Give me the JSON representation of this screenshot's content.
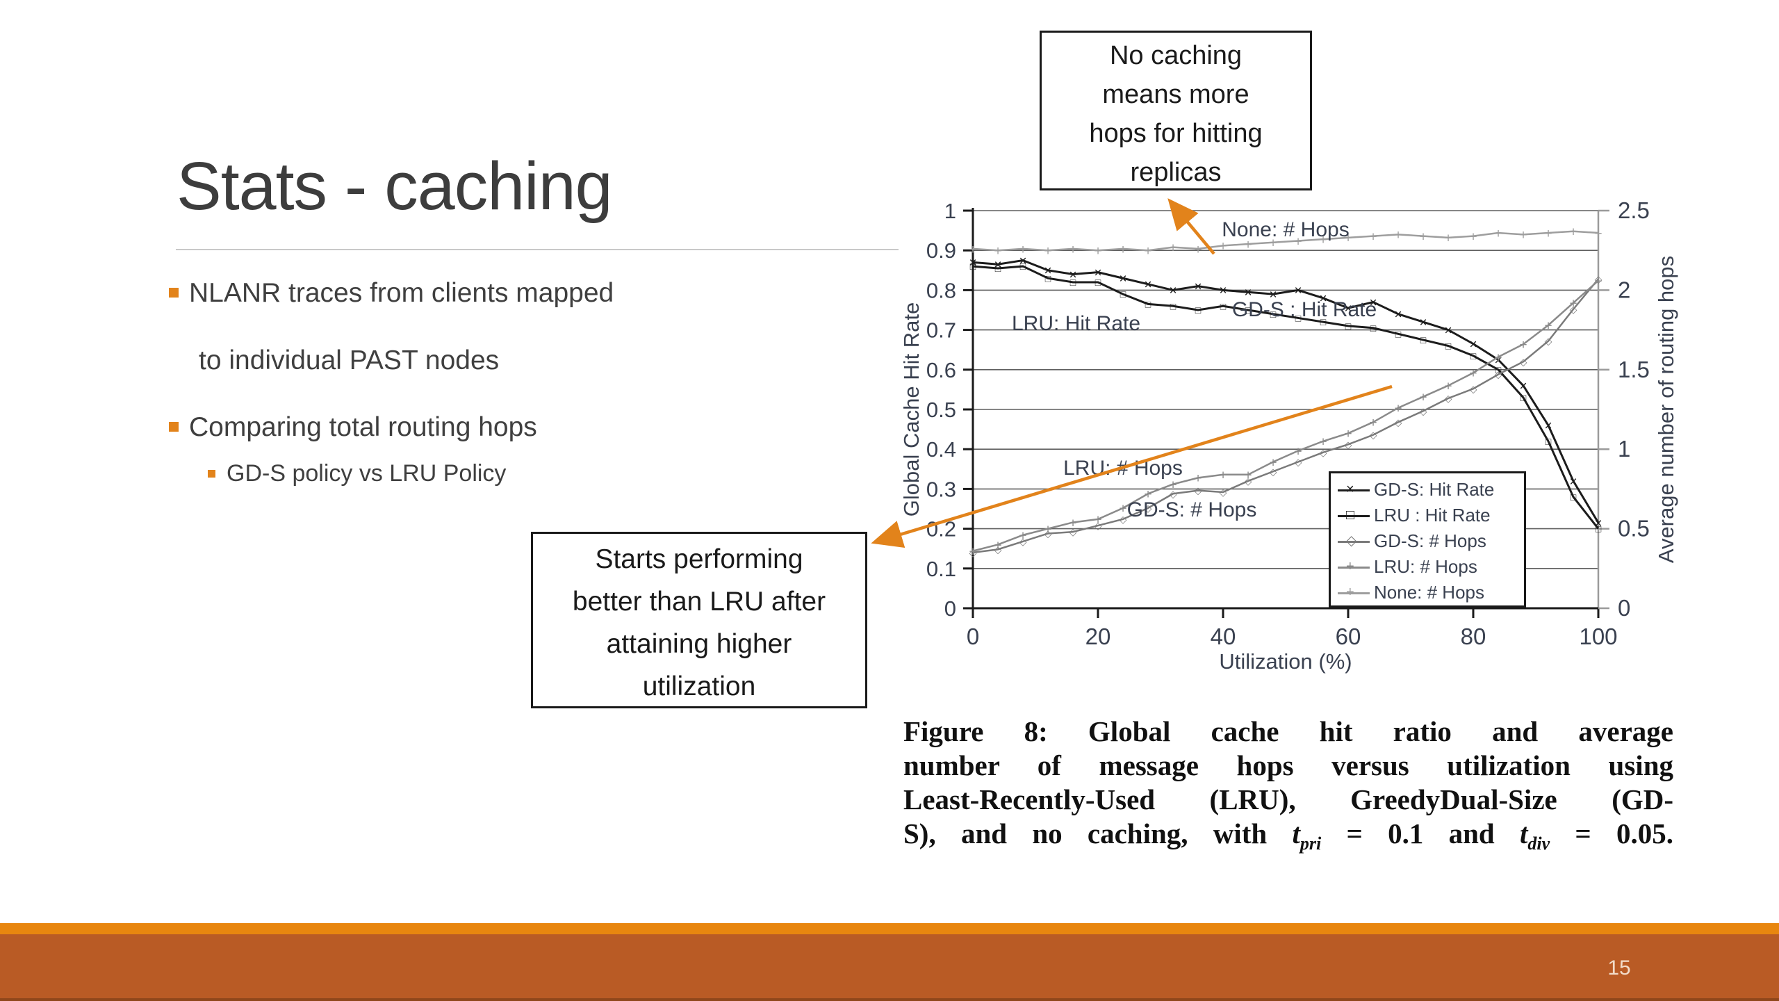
{
  "slide": {
    "title": "Stats - caching",
    "page_number": "15",
    "bullets": {
      "b1_line1": "NLANR traces from clients mapped",
      "b1_line2": "to individual PAST nodes",
      "b2": "Comparing total routing hops",
      "b2_sub": "GD-S policy vs LRU Policy"
    },
    "colors": {
      "accent_orange": "#e2831b",
      "footer_stripe_orange": "#e8860f",
      "footer_rust": "#b95b25"
    }
  },
  "callouts": {
    "no_caching": {
      "lines": [
        "No caching",
        "means more",
        "hops for hitting",
        "replicas"
      ]
    },
    "starts_performing": {
      "lines": [
        "Starts performing",
        "better than LRU after",
        "attaining higher",
        "utilization"
      ]
    }
  },
  "figure_caption": {
    "line1": "Figure 8:  Global cache hit ratio and average",
    "line2": "number of message hops versus utilization using",
    "line3": "Least-Recently-Used (LRU), GreedyDual-Size (GD-",
    "line4_parts": {
      "a": "S), and no caching, with ",
      "t1": "t",
      "sub1": "pri",
      "b": " = 0.1 and ",
      "t2": "t",
      "sub2": "div",
      "c": " = 0.05."
    }
  },
  "chart_data": {
    "type": "line",
    "title": "",
    "xlabel": "Utilization (%)",
    "ylabel_left": "Global Cache Hit Rate",
    "ylabel_right": "Average number of routing hops",
    "xlim": [
      0,
      100
    ],
    "ylim_left": [
      0,
      1
    ],
    "ylim_right": [
      0,
      2.5
    ],
    "grid": true,
    "legend_position": "inside-lower-right",
    "x_ticks": [
      0,
      20,
      40,
      60,
      80,
      100
    ],
    "left_ticks": [
      1,
      0.9,
      0.8,
      0.7,
      0.6,
      0.5,
      0.4,
      0.3,
      0.2,
      0.1,
      0
    ],
    "right_ticks": [
      2.5,
      2,
      1.5,
      1,
      0.5,
      0
    ],
    "x": [
      0,
      4,
      8,
      12,
      16,
      20,
      24,
      28,
      32,
      36,
      40,
      44,
      48,
      52,
      56,
      60,
      64,
      68,
      72,
      76,
      80,
      84,
      88,
      92,
      96,
      100
    ],
    "series": [
      {
        "name": "GD-S: Hit Rate",
        "axis": "left",
        "color": "#1c1c1c",
        "marker": "x",
        "values": [
          0.87,
          0.865,
          0.875,
          0.85,
          0.84,
          0.845,
          0.83,
          0.815,
          0.8,
          0.81,
          0.8,
          0.795,
          0.79,
          0.8,
          0.78,
          0.755,
          0.77,
          0.74,
          0.72,
          0.7,
          0.665,
          0.625,
          0.56,
          0.46,
          0.32,
          0.215
        ]
      },
      {
        "name": "LRU : Hit Rate",
        "axis": "left",
        "color": "#1c1c1c",
        "marker": "square",
        "values": [
          0.86,
          0.855,
          0.86,
          0.83,
          0.82,
          0.82,
          0.79,
          0.765,
          0.76,
          0.75,
          0.76,
          0.75,
          0.74,
          0.73,
          0.72,
          0.71,
          0.705,
          0.69,
          0.675,
          0.66,
          0.635,
          0.6,
          0.53,
          0.42,
          0.28,
          0.2
        ]
      },
      {
        "name": "GD-S: # Hops",
        "axis": "right",
        "color": "#7a7a7a",
        "marker": "diamond",
        "values": [
          0.35,
          0.37,
          0.42,
          0.47,
          0.48,
          0.52,
          0.56,
          0.63,
          0.72,
          0.74,
          0.73,
          0.8,
          0.86,
          0.92,
          0.98,
          1.03,
          1.09,
          1.17,
          1.24,
          1.32,
          1.38,
          1.47,
          1.55,
          1.68,
          1.88,
          2.07
        ]
      },
      {
        "name": "LRU: # Hops",
        "axis": "right",
        "color": "#8a8a8a",
        "marker": "plus",
        "values": [
          0.36,
          0.4,
          0.46,
          0.5,
          0.54,
          0.56,
          0.63,
          0.72,
          0.78,
          0.82,
          0.84,
          0.84,
          0.92,
          0.99,
          1.05,
          1.1,
          1.17,
          1.26,
          1.33,
          1.4,
          1.48,
          1.58,
          1.66,
          1.78,
          1.92,
          2.06
        ]
      },
      {
        "name": "None: # Hops",
        "axis": "right",
        "color": "#9e9e9e",
        "marker": "plus",
        "values": [
          2.26,
          2.25,
          2.26,
          2.25,
          2.26,
          2.25,
          2.26,
          2.25,
          2.27,
          2.26,
          2.28,
          2.29,
          2.3,
          2.31,
          2.32,
          2.33,
          2.34,
          2.35,
          2.34,
          2.33,
          2.34,
          2.36,
          2.35,
          2.36,
          2.37,
          2.36
        ]
      }
    ],
    "annotations": [
      {
        "text": "None: # Hops",
        "x": 50,
        "y": 0.953
      },
      {
        "text": "LRU: Hit Rate",
        "x": 16.5,
        "y": 0.717
      },
      {
        "text": "GD-S : Hit Rate",
        "x": 53,
        "y": 0.752
      },
      {
        "text": "LRU: # Hops",
        "x": 24,
        "y": 0.353
      },
      {
        "text": "GD-S: # Hops",
        "x": 35,
        "y": 0.248
      }
    ]
  }
}
